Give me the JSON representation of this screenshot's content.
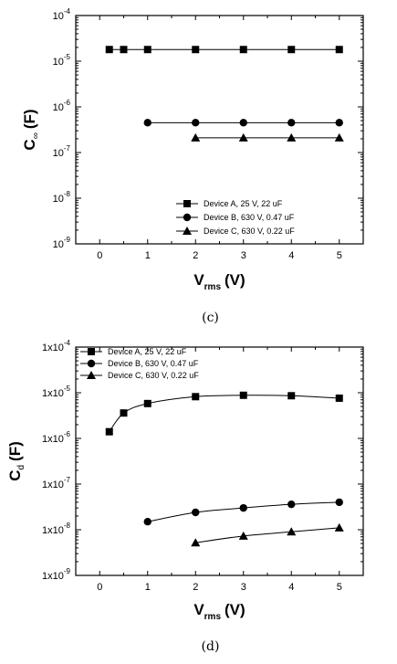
{
  "chart_data": [
    {
      "type": "scatter",
      "panel_label": "(c)",
      "ylabel_main": "C",
      "ylabel_sub": "∞",
      "ylabel_unit": "(F)",
      "xlabel_main": "V",
      "xlabel_sub": "rms",
      "xlabel_unit": "(V)",
      "x_ticks": [
        "0",
        "1",
        "2",
        "3",
        "4",
        "5"
      ],
      "y_ticks": [
        {
          "base": "10",
          "exp": "-9"
        },
        {
          "base": "10",
          "exp": "-8"
        },
        {
          "base": "10",
          "exp": "-7"
        },
        {
          "base": "10",
          "exp": "-6"
        },
        {
          "base": "10",
          "exp": "-5"
        },
        {
          "base": "10",
          "exp": "-4"
        }
      ],
      "xlim": [
        -0.5,
        5.5
      ],
      "ylim": [
        1e-09,
        0.0001
      ],
      "y_scale": "log",
      "legend_position": "bottom-right",
      "series": [
        {
          "name": "Device A, 25 V, 22 uF",
          "marker": "square",
          "x": [
            0.2,
            0.5,
            1,
            2,
            3,
            4,
            5
          ],
          "y": [
            1.8e-05,
            1.8e-05,
            1.8e-05,
            1.8e-05,
            1.8e-05,
            1.8e-05,
            1.8e-05
          ]
        },
        {
          "name": "Device B, 630 V, 0.47 uF",
          "marker": "circle",
          "x": [
            1,
            2,
            3,
            4,
            5
          ],
          "y": [
            4.5e-07,
            4.5e-07,
            4.5e-07,
            4.5e-07,
            4.5e-07
          ]
        },
        {
          "name": "Device C, 630 V, 0.22 uF",
          "marker": "triangle",
          "x": [
            2,
            3,
            4,
            5
          ],
          "y": [
            2.1e-07,
            2.1e-07,
            2.1e-07,
            2.1e-07
          ]
        }
      ]
    },
    {
      "type": "line",
      "panel_label": "(d)",
      "ylabel_main": "C",
      "ylabel_sub": "d",
      "ylabel_unit": "(F)",
      "xlabel_main": "V",
      "xlabel_sub": "rms",
      "xlabel_unit": "(V)",
      "x_ticks": [
        "0",
        "1",
        "2",
        "3",
        "4",
        "5"
      ],
      "y_ticks": [
        {
          "base": "1x10",
          "exp": "-9"
        },
        {
          "base": "1x10",
          "exp": "-8"
        },
        {
          "base": "1x10",
          "exp": "-7"
        },
        {
          "base": "1x10",
          "exp": "-6"
        },
        {
          "base": "1x10",
          "exp": "-5"
        },
        {
          "base": "1x10",
          "exp": "-4"
        }
      ],
      "xlim": [
        -0.5,
        5.5
      ],
      "ylim": [
        1e-09,
        0.0001
      ],
      "y_scale": "log",
      "legend_position": "top-left",
      "series": [
        {
          "name": "Device A, 25 V, 22 uF",
          "marker": "square",
          "x": [
            0.2,
            0.5,
            1,
            2,
            3,
            4,
            5
          ],
          "y": [
            1.4e-06,
            3.6e-06,
            5.8e-06,
            8.2e-06,
            8.8e-06,
            8.6e-06,
            7.6e-06
          ]
        },
        {
          "name": "Device B, 630 V, 0.47 uF",
          "marker": "circle",
          "x": [
            1,
            2,
            3,
            4,
            5
          ],
          "y": [
            1.5e-08,
            2.4e-08,
            3e-08,
            3.6e-08,
            4e-08
          ]
        },
        {
          "name": "Device C, 630 V, 0.22 uF",
          "marker": "triangle",
          "x": [
            2,
            3,
            4,
            5
          ],
          "y": [
            5.2e-09,
            7.3e-09,
            9e-09,
            1.1e-08
          ]
        }
      ]
    }
  ]
}
